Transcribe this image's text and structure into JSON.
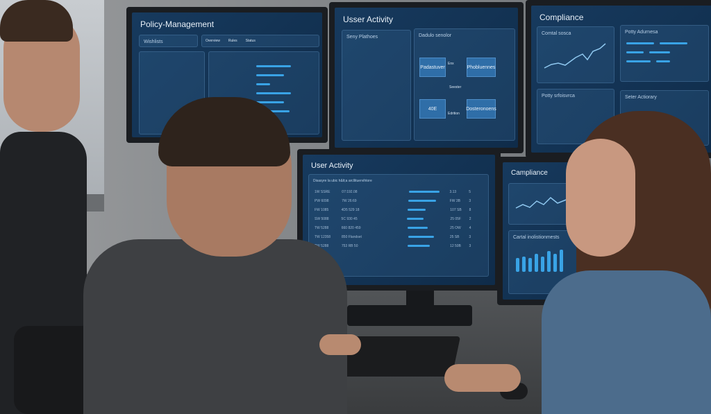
{
  "monitors": {
    "policy": {
      "title": "Policy-Management",
      "panel_label": "Wishlists",
      "tabs": [
        "Overview",
        "Rules",
        "Status"
      ]
    },
    "activity_top": {
      "title": "Usser Activity",
      "table_title": "Seny Plathoes",
      "diagram_title": "Dadulo senolor",
      "nodes": [
        "Padastuver",
        "Phobluennes",
        "40E",
        "Dosteronoens"
      ],
      "edge_labels": [
        "Enx",
        "Seester",
        "Edrition"
      ]
    },
    "compliance_top": {
      "title": "Compliance",
      "panels": [
        "Comtal sosca",
        "Potty Adurnesa",
        "Potty srfoisvrca",
        "Seter Actiorary"
      ]
    },
    "activity_main": {
      "title": "User Activity",
      "subtitle": "Disasyre la ubic h&lt;a arcllituervihtore",
      "rows": [
        {
          "user": "1W SSRE",
          "time": "07:192.08",
          "val": "3.13",
          "n": "5"
        },
        {
          "user": "PW 6098",
          "time": "7W 26:69",
          "val": "FW 3B",
          "n": "3"
        },
        {
          "user": "FW 1085",
          "time": "4D5 529 18",
          "val": "107 SB",
          "n": "8"
        },
        {
          "user": "SW 5088",
          "time": "5C 930 45",
          "val": "25 05F",
          "n": "2"
        },
        {
          "user": "TW 5288",
          "time": "660 820 459",
          "val": "25 OW",
          "n": "4"
        },
        {
          "user": "TW 12358",
          "time": "850 Flandset",
          "val": "25 SB",
          "n": "3"
        },
        {
          "user": "TW 5288",
          "time": "753 RB 50",
          "val": "12 50B",
          "n": "3"
        }
      ],
      "bar_levels": [
        0.9,
        0.8,
        0.55,
        0.5,
        0.6,
        0.75,
        0.65
      ]
    },
    "compliance_main": {
      "title": "Campliance",
      "panel": "Cartal inolistionmests"
    }
  },
  "colors": {
    "screen": "#173a5e",
    "accent": "#39a3e6"
  }
}
